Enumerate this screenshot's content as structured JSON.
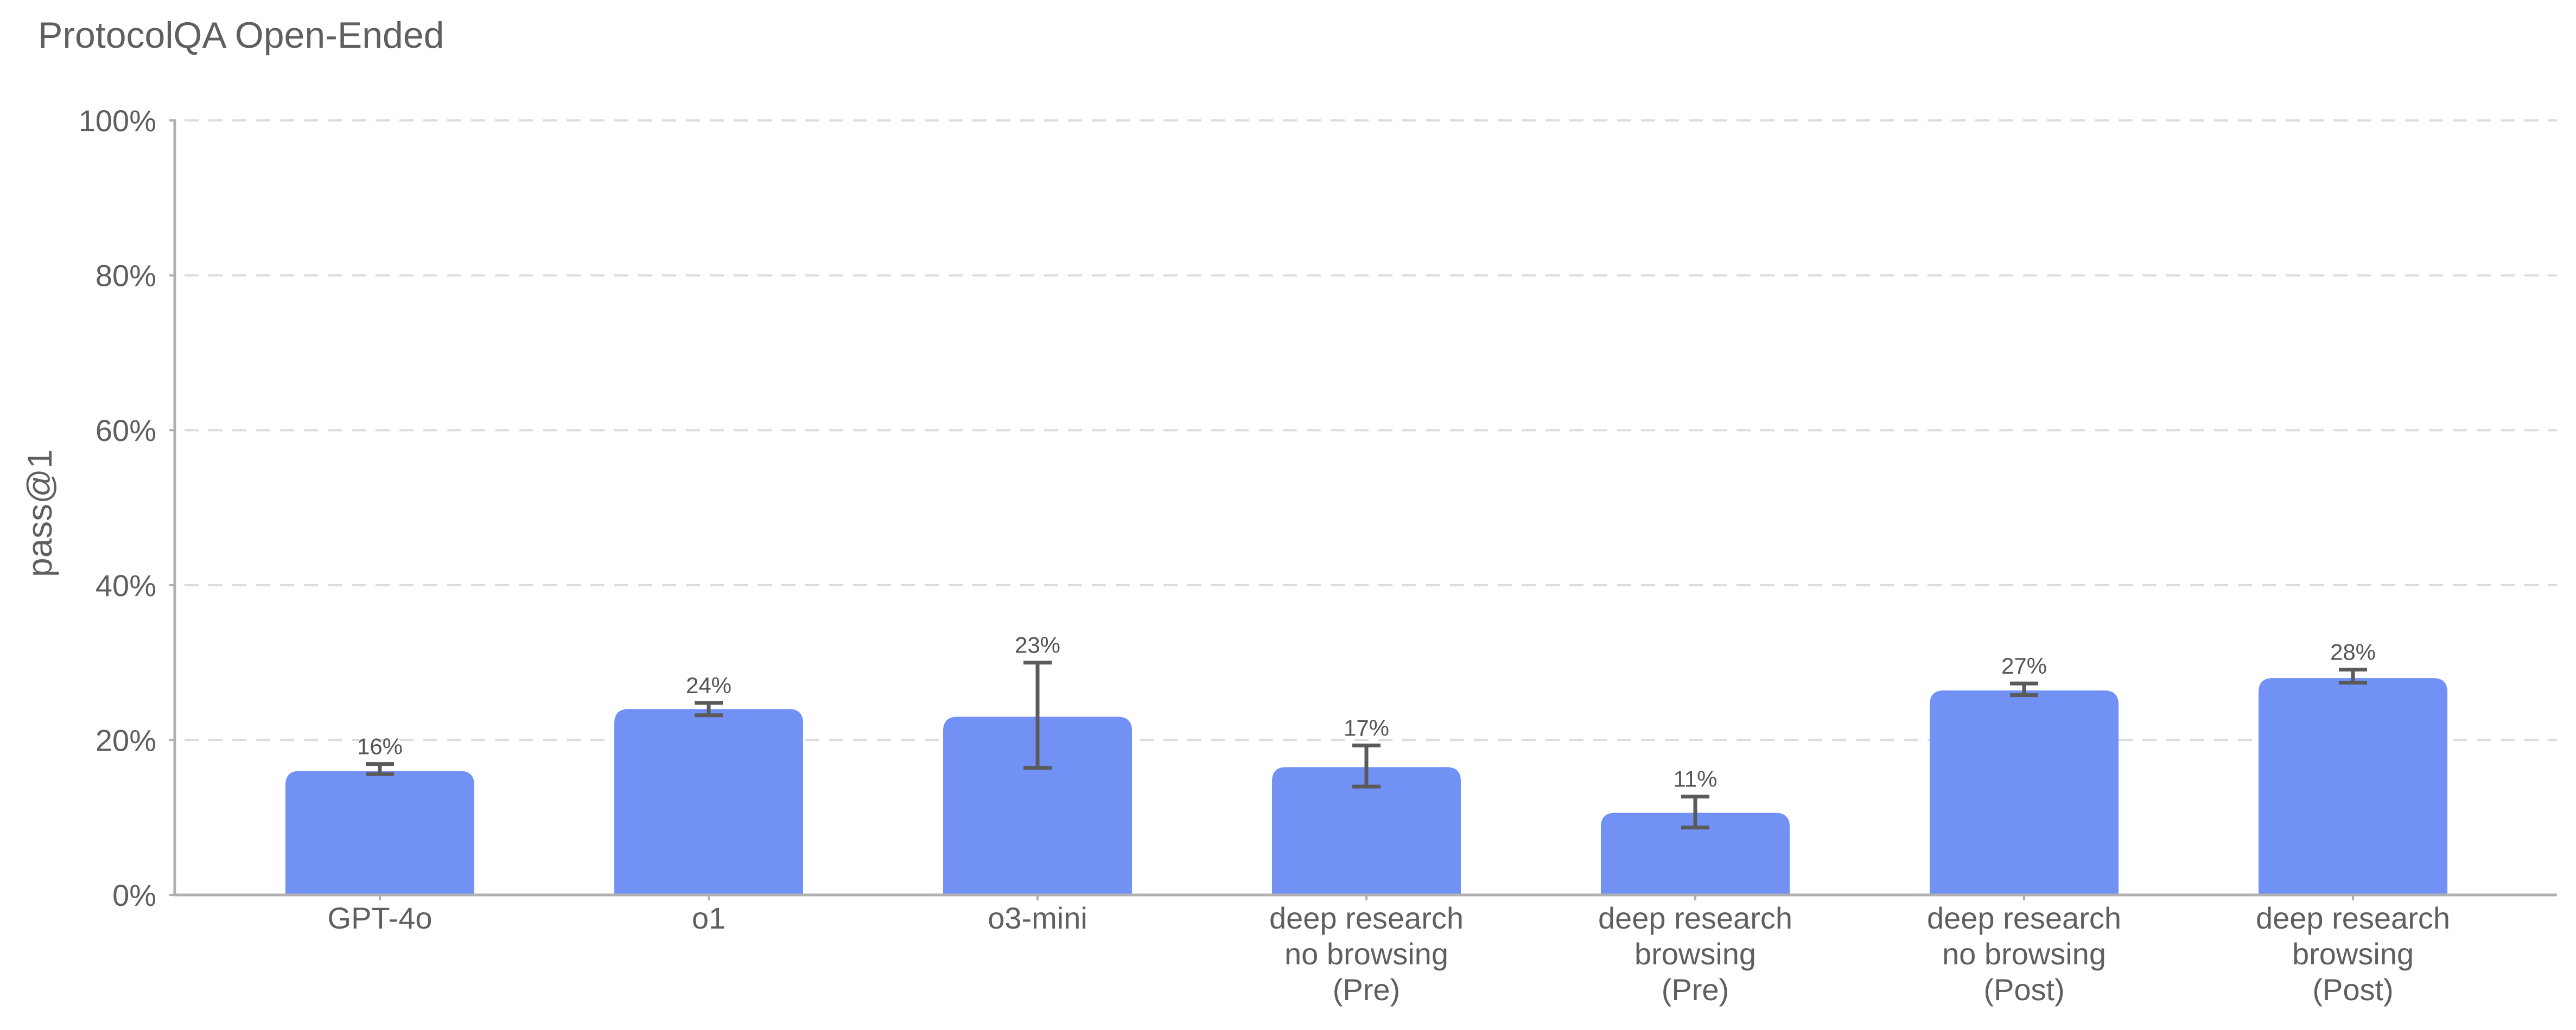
{
  "chart_data": {
    "type": "bar",
    "title": "ProtocolQA Open-Ended",
    "xlabel": "",
    "ylabel": "pass@1",
    "ylim": [
      0,
      100
    ],
    "yticks": [
      "0%",
      "20%",
      "40%",
      "60%",
      "80%",
      "100%"
    ],
    "grid": "horizontal dashed",
    "bar_color": "#7191f5",
    "categories": [
      [
        "GPT-4o"
      ],
      [
        "o1"
      ],
      [
        "o3-mini"
      ],
      [
        "deep research",
        "no browsing",
        "(Pre)"
      ],
      [
        "deep research",
        "browsing",
        "(Pre)"
      ],
      [
        "deep research",
        "no browsing",
        "(Post)"
      ],
      [
        "deep research",
        "browsing",
        "(Post)"
      ]
    ],
    "values": [
      16,
      24,
      23,
      17,
      11,
      27,
      28
    ],
    "bar_heights": [
      16,
      24,
      23,
      16.5,
      10.6,
      26.4,
      28.0
    ],
    "error_low": [
      15.6,
      23.2,
      16.4,
      14.0,
      8.7,
      25.8,
      27.4
    ],
    "error_high": [
      16.9,
      24.8,
      30.0,
      19.3,
      12.7,
      27.3,
      29.1
    ],
    "data_labels": [
      "16%",
      "24%",
      "23%",
      "17%",
      "11%",
      "27%",
      "28%"
    ]
  }
}
